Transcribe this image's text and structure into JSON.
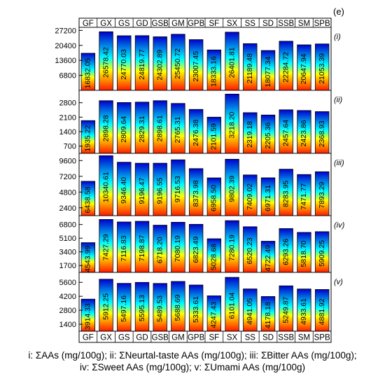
{
  "figure_label": "(e)",
  "categories": [
    "GF",
    "GX",
    "GS",
    "GD",
    "GSB",
    "GM",
    "GPB",
    "SF",
    "SX",
    "SS",
    "SD",
    "SSB",
    "SM",
    "SPB"
  ],
  "caption_lines": [
    "i: ΣAAs (mg/100g); ii: ΣNeurtal-taste AAs (mg/100g); iii: ΣBitter AAs (mg/100g);",
    "iv: ΣSweet AAs (mg/100g); v: ΣUmami AAs (mg/100g)"
  ],
  "colors": {
    "bar_bottom": "#ff1a00",
    "bar_mid": "#ffff00",
    "bar_cyan": "#00ffff",
    "bar_top": "#0000cc",
    "bar_stroke": "#000000"
  },
  "chart_data": [
    {
      "type": "bar",
      "panel_label": "(i)",
      "series_name": "ΣAAs (mg/100g)",
      "yticks": [
        6800,
        13600,
        20400,
        27200
      ],
      "ylim": [
        0,
        28600
      ],
      "values": [
        16832.05,
        26578.42,
        24770.03,
        24819.77,
        24302.89,
        25450.72,
        23007.45,
        18333.16,
        26401.81,
        21189.48,
        18077.34,
        22284.72,
        20647.94,
        21053.39
      ],
      "value_labels": [
        "16832.05",
        "26578.42",
        "24770.03",
        "24819.77",
        "24302.89",
        "25450.72",
        "23007.45",
        "18333.16",
        "26401.81",
        "21189.48",
        "18077.34",
        "22284.72",
        "20647.94",
        "21053.39"
      ]
    },
    {
      "type": "bar",
      "panel_label": "(ii)",
      "series_name": "ΣNeurtal-taste AAs (mg/100g)",
      "yticks": [
        700,
        1400,
        2100,
        2800
      ],
      "ylim": [
        350,
        3400
      ],
      "values": [
        1935.22,
        2898.28,
        2809.64,
        2829.31,
        2898.61,
        2765.31,
        2476.38,
        2101.59,
        3218.2,
        2319.18,
        2205.36,
        2457.64,
        2423.86,
        2368.93
      ],
      "value_labels": [
        "1935.22",
        "2898.28",
        "2809.64",
        "2829.31",
        "2898.61",
        "2765.31",
        "2476.38",
        "2101.59",
        "3218.20",
        "2319.18",
        "2205.36",
        "2457.64",
        "2423.86",
        "2368.93"
      ]
    },
    {
      "type": "bar",
      "panel_label": "(iii)",
      "series_name": "ΣBitter AAs (mg/100g)",
      "yticks": [
        2400,
        4800,
        7200,
        9600
      ],
      "ylim": [
        1200,
        10700
      ],
      "values": [
        6438.58,
        10340.61,
        9346.4,
        9196.47,
        9196.55,
        9716.53,
        8373.98,
        6958.5,
        9802.39,
        7409.02,
        6971.31,
        8283.95,
        7471.77,
        7893.29
      ],
      "value_labels": [
        "6438.58",
        "10340.61",
        "9346.40",
        "9196.47",
        "9196.55",
        "9716.53",
        "8373.98",
        "6958.50",
        "9802.39",
        "7409.02",
        "6971.31",
        "8283.95",
        "7471.77",
        "7893.29"
      ]
    },
    {
      "type": "bar",
      "panel_label": "(iv)",
      "series_name": "ΣSweet AAs (mg/100g)",
      "yticks": [
        1700,
        3400,
        5100,
        6800
      ],
      "ylim": [
        850,
        7900
      ],
      "values": [
        4543.99,
        7427.29,
        7116.83,
        7198.87,
        6718.2,
        7080.19,
        6823.49,
        5028.68,
        7280.19,
        6520.23,
        4722.49,
        6293.26,
        5818.7,
        5909.25
      ],
      "value_labels": [
        "4543.99",
        "7427.29",
        "7116.83",
        "7198.87",
        "6718.20",
        "7080.19",
        "6823.49",
        "5028.68",
        "7280.19",
        "6520.23",
        "4722.49",
        "6293.26",
        "5818.70",
        "5909.25"
      ]
    },
    {
      "type": "bar",
      "panel_label": "(v)",
      "series_name": "ΣUmami AAs (mg/100g)",
      "yticks": [
        1400,
        2800,
        4200,
        5600
      ],
      "ylim": [
        700,
        6600
      ],
      "values": [
        3914.33,
        5912.25,
        5497.16,
        5595.13,
        5489.53,
        5688.69,
        5333.61,
        4247.43,
        6101.04,
        4941.05,
        4178.18,
        5249.87,
        4933.61,
        4881.92
      ],
      "value_labels": [
        "3914.33",
        "5912.25",
        "5497.16",
        "5595.13",
        "5489.53",
        "5688.69",
        "5333.61",
        "4247.43",
        "6101.04",
        "4941.05",
        "4178.18",
        "5249.87",
        "4933.61",
        "4881.92"
      ]
    }
  ]
}
